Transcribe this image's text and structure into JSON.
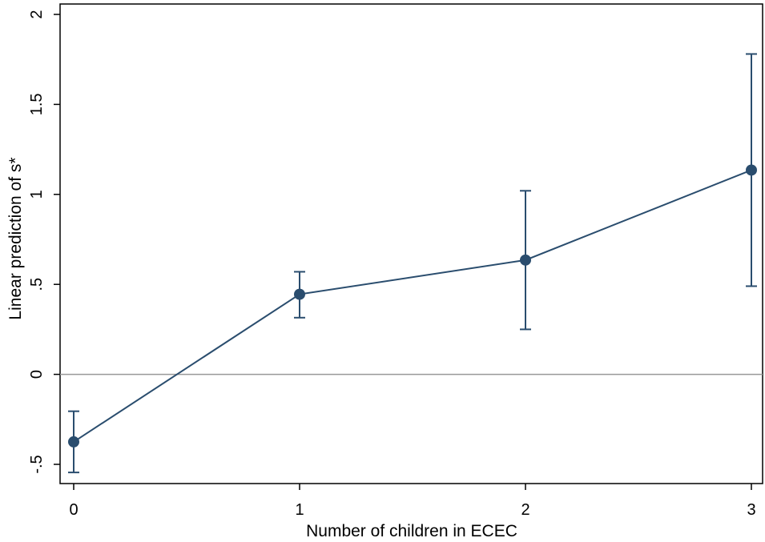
{
  "chart_data": {
    "type": "line",
    "xlabel": "Number of children in ECEC",
    "ylabel": "Linear prediction of s*",
    "x": [
      0,
      1,
      2,
      3
    ],
    "xlim": [
      0,
      3
    ],
    "ylim": [
      -0.5,
      2
    ],
    "x_ticks": [
      {
        "value": 0,
        "label": "0"
      },
      {
        "value": 1,
        "label": "1"
      },
      {
        "value": 2,
        "label": "2"
      },
      {
        "value": 3,
        "label": "3"
      }
    ],
    "y_ticks": [
      {
        "value": -0.5,
        "label": "-.5"
      },
      {
        "value": 0,
        "label": "0"
      },
      {
        "value": 0.5,
        "label": ".5"
      },
      {
        "value": 1,
        "label": "1"
      },
      {
        "value": 1.5,
        "label": "1.5"
      },
      {
        "value": 2,
        "label": "2"
      }
    ],
    "reference_line_y": 0,
    "grid": false,
    "series": [
      {
        "values": [
          -0.375,
          0.445,
          0.635,
          1.135
        ],
        "ci_lower": [
          -0.545,
          0.315,
          0.25,
          0.49
        ],
        "ci_upper": [
          -0.205,
          0.57,
          1.02,
          1.78
        ],
        "color": "#2a4d6e"
      }
    ],
    "reference_line_color": "#999999"
  }
}
